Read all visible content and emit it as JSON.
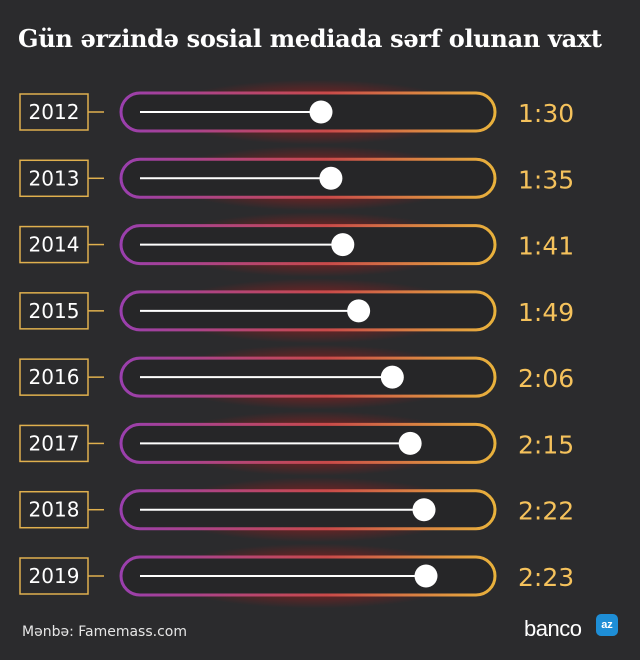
{
  "title": "Gün ərzində sosial mediada sərf olunan vaxt",
  "source": "Mənbə: Famemass.com",
  "logo": {
    "text": "banco",
    "badge": "az"
  },
  "colors": {
    "background": "#2b2b2d",
    "value_text": "#f5c25c",
    "year_box_border": "#e0b04e",
    "track_border_left": "#9a3fae",
    "track_glow_center": "#c81818",
    "track_border_right": "#e9b23c",
    "slider_line": "#ffffff",
    "knob": "#ffffff"
  },
  "chart_data": {
    "type": "bar",
    "title": "Gün ərzində sosial mediada sərf olunan vaxt",
    "categories": [
      "2012",
      "2013",
      "2014",
      "2015",
      "2016",
      "2017",
      "2018",
      "2019"
    ],
    "values": [
      90,
      95,
      101,
      109,
      126,
      135,
      142,
      143
    ],
    "value_labels": [
      "1:30",
      "1:35",
      "1:41",
      "1:49",
      "2:06",
      "2:15",
      "2:22",
      "2:23"
    ],
    "unit": "minutes per day (h:mm)",
    "orientation": "horizontal",
    "grid": false,
    "legend": "none"
  }
}
